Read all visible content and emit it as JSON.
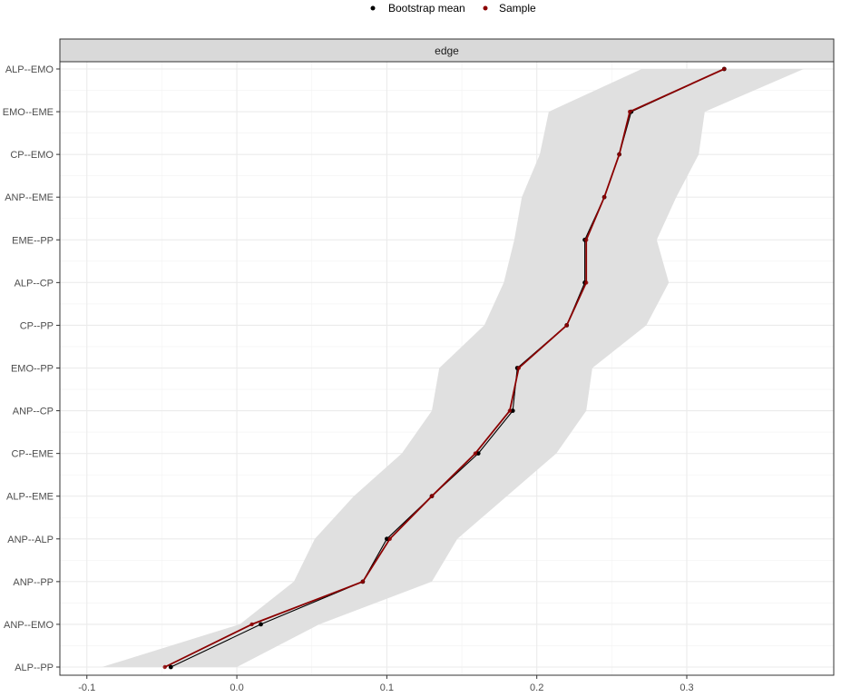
{
  "chart_data": {
    "type": "line",
    "facet_label": "edge",
    "categories": [
      "ALP--EMO",
      "EMO--EME",
      "CP--EMO",
      "ANP--EME",
      "EME--PP",
      "ALP--CP",
      "CP--PP",
      "EMO--PP",
      "ANP--CP",
      "CP--EME",
      "ALP--EME",
      "ANP--ALP",
      "ANP--PP",
      "ANP--EMO",
      "ALP--PP"
    ],
    "xlim": [
      -0.118,
      0.398
    ],
    "x_ticks": [
      -0.1,
      0.0,
      0.1,
      0.2,
      0.3
    ],
    "x_tick_labels": [
      "-0.1",
      "0.0",
      "0.1",
      "0.2",
      "0.3"
    ],
    "series": [
      {
        "name": "Bootstrap mean",
        "color": "#000000",
        "values": [
          0.325,
          0.263,
          0.255,
          0.245,
          0.232,
          0.232,
          0.22,
          0.187,
          0.184,
          0.161,
          0.13,
          0.1,
          0.084,
          0.016,
          -0.044
        ]
      },
      {
        "name": "Sample",
        "color": "#8b0000",
        "values": [
          0.325,
          0.262,
          0.255,
          0.245,
          0.233,
          0.233,
          0.22,
          0.188,
          0.182,
          0.159,
          0.13,
          0.102,
          0.084,
          0.01,
          -0.048
        ]
      }
    ],
    "ci_lower": [
      0.27,
      0.208,
      0.202,
      0.19,
      0.185,
      0.178,
      0.165,
      0.135,
      0.13,
      0.11,
      0.078,
      0.052,
      0.038,
      0.002,
      -0.09
    ],
    "ci_upper": [
      0.378,
      0.312,
      0.308,
      0.293,
      0.28,
      0.288,
      0.273,
      0.237,
      0.233,
      0.213,
      0.18,
      0.147,
      0.13,
      0.055,
      0.0
    ],
    "ci_color": "#e0e0e0",
    "grid": true,
    "legend_position": "top"
  },
  "legend": {
    "bootstrap_label": "Bootstrap mean",
    "sample_label": "Sample"
  }
}
